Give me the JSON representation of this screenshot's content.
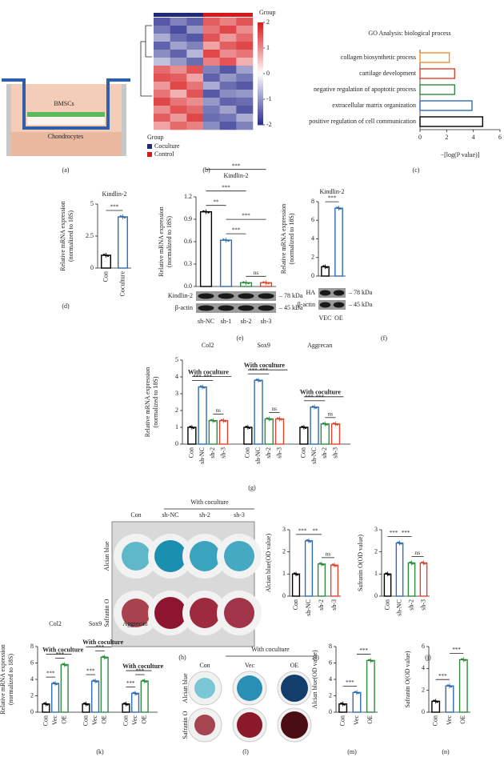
{
  "diagram": {
    "panel": "(a)",
    "labels": [
      "BMSCs",
      "Chondrocytes"
    ]
  },
  "images": [
    {
      "panel": "(h)",
      "title": "With coculture",
      "columns": [
        "Con",
        "sh-NC",
        "sh-2",
        "sh-3"
      ],
      "rows": [
        "Alcian blue",
        "Safranin O"
      ]
    },
    {
      "panel": "(l)",
      "title": "With coculture",
      "columns": [
        "Con",
        "Vec",
        "OE"
      ],
      "rows": [
        "Alcian blue",
        "Safranin O"
      ]
    }
  ],
  "chart_data": [
    {
      "type": "heatmap",
      "panel": "(b)",
      "annotation_label": "Group",
      "legend_title": "Group",
      "groups": [
        {
          "name": "Coculture",
          "color": "#1f2a7a",
          "columns": 3
        },
        {
          "name": "Control",
          "color": "#d7191c",
          "columns": 3
        }
      ],
      "zlim": [
        -2,
        2
      ],
      "zticks": [
        2,
        1,
        0,
        -1,
        -2
      ],
      "values": [
        [
          -1.6,
          -1.2,
          -1.5,
          1.4,
          1.1,
          1.5
        ],
        [
          -1.3,
          -1.7,
          -1.0,
          1.2,
          1.6,
          1.0
        ],
        [
          -0.8,
          -1.4,
          -1.6,
          1.5,
          0.9,
          1.3
        ],
        [
          -1.5,
          -0.9,
          -1.2,
          0.8,
          1.4,
          1.6
        ],
        [
          -1.1,
          -1.5,
          -0.7,
          1.6,
          1.0,
          1.2
        ],
        [
          -0.6,
          -1.0,
          -1.4,
          1.1,
          1.5,
          0.7
        ],
        [
          1.3,
          1.0,
          1.5,
          -1.2,
          -1.6,
          -0.9
        ],
        [
          1.5,
          1.4,
          0.8,
          -1.5,
          -1.0,
          -1.3
        ],
        [
          0.9,
          1.6,
          1.2,
          -0.8,
          -1.4,
          -1.6
        ],
        [
          1.2,
          0.7,
          1.5,
          -1.6,
          -1.1,
          -1.0
        ],
        [
          1.6,
          1.2,
          1.0,
          -1.0,
          -1.5,
          -1.4
        ],
        [
          1.0,
          1.5,
          1.3,
          -1.3,
          -0.9,
          -1.6
        ],
        [
          1.4,
          0.9,
          1.6,
          -1.4,
          -1.3,
          -0.8
        ],
        [
          0.8,
          1.3,
          1.1,
          -1.1,
          -1.6,
          -1.2
        ]
      ]
    },
    {
      "type": "hbar",
      "panel": "(c)",
      "title": "GO Analysis: biological process",
      "xlabel": "−[log(P value)]",
      "categories": [
        "collagen biosynthetic process",
        "cartilage development",
        "negative regulation of apoptotic process",
        "extracellular matrix organization",
        "positive regulation of cell communication"
      ],
      "values": [
        2.2,
        2.6,
        2.6,
        3.9,
        4.7
      ],
      "colors": [
        "#f28b2c",
        "#e0452b",
        "#2e8b3e",
        "#2f6db5",
        "#000000"
      ],
      "xlim": [
        0,
        6
      ],
      "xticks": [
        0,
        2,
        4,
        6
      ]
    },
    {
      "type": "bar",
      "panel": "(d)",
      "title": "Kindlin-2",
      "ylabel": [
        "Relative mRNA expression",
        "(normalized to 18S)"
      ],
      "categories": [
        "Con",
        "Coculture"
      ],
      "values": [
        1.0,
        4.0
      ],
      "colors": [
        "#000000",
        "#2f6db5"
      ],
      "ylim": [
        0,
        5
      ],
      "yticks": [
        0,
        2.5,
        5
      ],
      "annotations": [
        {
          "text": "***",
          "from": 0,
          "to": 1
        }
      ]
    },
    {
      "type": "bar",
      "panel": "(e)",
      "title": "Kindlin-2",
      "ylabel": [
        "Relative mRNA expression",
        "(normalized to 18S)"
      ],
      "categories": [
        "sh-NC",
        "sh-1",
        "sh-2",
        "sh-3"
      ],
      "values": [
        1.0,
        0.62,
        0.05,
        0.05
      ],
      "colors": [
        "#000000",
        "#2f6db5",
        "#2e8b3e",
        "#e0452b"
      ],
      "ylim": [
        0,
        1.2
      ],
      "yticks": [
        {
          "value": 0,
          "label": "0.0"
        },
        0.3,
        0.6,
        0.9,
        1.2
      ],
      "annotations": [
        {
          "text": "***",
          "from": 0,
          "to": 3
        },
        {
          "text": "***",
          "from": 0,
          "to": 2
        },
        {
          "text": "**",
          "from": 0,
          "to": 1
        },
        {
          "text": "***",
          "from": 1,
          "to": 3
        },
        {
          "text": "***",
          "from": 1,
          "to": 2
        },
        {
          "text": "ns",
          "from": 2,
          "to": 3
        }
      ],
      "blot": {
        "rows": [
          "Kindlin-2",
          "β-actin"
        ],
        "sizes": [
          "– 78 kDa",
          "– 45 kDa"
        ]
      }
    },
    {
      "type": "bar",
      "panel": "(f)",
      "title": "Kindlin-2",
      "ylabel": [
        "Relative mRNA expression",
        "(normalized to 18S)"
      ],
      "categories": [
        "VEC",
        "OE"
      ],
      "values": [
        1.0,
        7.3
      ],
      "colors": [
        "#000000",
        "#2f6db5"
      ],
      "ylim": [
        0,
        8
      ],
      "yticks": [
        0,
        2,
        4,
        6,
        8
      ],
      "annotations": [
        {
          "text": "***",
          "from": 0,
          "to": 1
        }
      ],
      "blot": {
        "rows": [
          "HA",
          "β-actin"
        ],
        "sizes": [
          "– 78 kDa",
          "– 45 kDa"
        ]
      }
    },
    {
      "type": "bar",
      "panel": "(g)",
      "ylabel": [
        "Relative mRNA expression",
        "(normalized to 18S)"
      ],
      "categories": [
        "Col2",
        "Sox9",
        "Aggrecan"
      ],
      "group_notes": [
        "With coculture",
        "With coculture",
        "With coculture"
      ],
      "series": [
        {
          "name": "Con",
          "color": "#000000",
          "values": [
            1.0,
            1.0,
            1.0
          ]
        },
        {
          "name": "sh-NC",
          "color": "#2f6db5",
          "values": [
            3.4,
            3.8,
            2.2
          ]
        },
        {
          "name": "sh-2",
          "color": "#2e8b3e",
          "values": [
            1.4,
            1.5,
            1.2
          ]
        },
        {
          "name": "sh-3",
          "color": "#e0452b",
          "values": [
            1.4,
            1.5,
            1.2
          ]
        }
      ],
      "ylim": [
        0,
        5
      ],
      "yticks": [
        0,
        1,
        2,
        3,
        4,
        5
      ],
      "annotations": [
        {
          "text": "***",
          "group": 0,
          "from": 0,
          "to": 1
        },
        {
          "text": "***",
          "group": 0,
          "from": 1,
          "to": 2
        },
        {
          "text": "ns",
          "group": 0,
          "from": 2,
          "to": 3
        },
        {
          "text": "***",
          "group": 1,
          "from": 0,
          "to": 1
        },
        {
          "text": "***",
          "group": 1,
          "from": 1,
          "to": 2
        },
        {
          "text": "ns",
          "group": 1,
          "from": 2,
          "to": 3
        },
        {
          "text": "***",
          "group": 2,
          "from": 0,
          "to": 1
        },
        {
          "text": "***",
          "group": 2,
          "from": 1,
          "to": 2
        },
        {
          "text": "ns",
          "group": 2,
          "from": 2,
          "to": 3
        }
      ]
    },
    {
      "type": "bar",
      "panel": "(i)",
      "ylabel": [
        "Alcian blue(OD value)"
      ],
      "categories": [
        "Con",
        "sh-NC",
        "sh-2",
        "sh-3"
      ],
      "values": [
        1.0,
        2.5,
        1.45,
        1.4
      ],
      "colors": [
        "#000000",
        "#2f6db5",
        "#2e8b3e",
        "#e0452b"
      ],
      "ylim": [
        0,
        3
      ],
      "yticks": [
        0,
        1,
        2,
        3
      ],
      "annotations": [
        {
          "text": "***",
          "from": 0,
          "to": 1
        },
        {
          "text": "**",
          "from": 1,
          "to": 2
        },
        {
          "text": "ns",
          "from": 2,
          "to": 3
        }
      ]
    },
    {
      "type": "bar",
      "panel": "(j)",
      "ylabel": [
        "Safranin O(OD value)"
      ],
      "categories": [
        "Con",
        "sh-NC",
        "sh-2",
        "sh-3"
      ],
      "values": [
        1.0,
        2.4,
        1.5,
        1.5
      ],
      "colors": [
        "#000000",
        "#2f6db5",
        "#2e8b3e",
        "#e0452b"
      ],
      "ylim": [
        0,
        3
      ],
      "yticks": [
        0,
        1,
        2,
        3
      ],
      "annotations": [
        {
          "text": "***",
          "from": 0,
          "to": 1
        },
        {
          "text": "***",
          "from": 1,
          "to": 2
        },
        {
          "text": "ns",
          "from": 2,
          "to": 3
        }
      ]
    },
    {
      "type": "bar",
      "panel": "(k)",
      "ylabel": [
        "Relative mRNA expression",
        "(normalized to 18S)"
      ],
      "categories": [
        "Col2",
        "Sox9",
        "Aggrecan"
      ],
      "group_notes": [
        "With coculture",
        "With coculture",
        "With coculture"
      ],
      "series": [
        {
          "name": "Con",
          "color": "#000000",
          "values": [
            1.0,
            1.0,
            1.0
          ]
        },
        {
          "name": "Vec",
          "color": "#2f6db5",
          "values": [
            3.5,
            3.8,
            2.3
          ]
        },
        {
          "name": "OE",
          "color": "#2e8b3e",
          "values": [
            5.8,
            6.7,
            3.8
          ]
        }
      ],
      "ylim": [
        0,
        8
      ],
      "yticks": [
        0,
        2,
        4,
        6,
        8
      ],
      "annotations": [
        {
          "text": "***",
          "group": 0,
          "from": 0,
          "to": 1
        },
        {
          "text": "***",
          "group": 0,
          "from": 1,
          "to": 2
        },
        {
          "text": "***",
          "group": 1,
          "from": 0,
          "to": 1
        },
        {
          "text": "***",
          "group": 1,
          "from": 1,
          "to": 2
        },
        {
          "text": "***",
          "group": 2,
          "from": 0,
          "to": 1
        },
        {
          "text": "***",
          "group": 2,
          "from": 1,
          "to": 2
        }
      ]
    },
    {
      "type": "bar",
      "panel": "(m)",
      "ylabel": [
        "Alcian blue(OD value)"
      ],
      "categories": [
        "Con",
        "Vec",
        "OE"
      ],
      "values": [
        1.0,
        2.4,
        6.3
      ],
      "colors": [
        "#000000",
        "#2f6db5",
        "#2e8b3e"
      ],
      "ylim": [
        0,
        8
      ],
      "yticks": [
        0,
        2,
        4,
        6,
        8
      ],
      "annotations": [
        {
          "text": "***",
          "from": 0,
          "to": 1
        },
        {
          "text": "***",
          "from": 1,
          "to": 2
        }
      ]
    },
    {
      "type": "bar",
      "panel": "(n)",
      "ylabel": [
        "Safranin O(OD value)"
      ],
      "categories": [
        "Con",
        "Vec",
        "OE"
      ],
      "values": [
        1.0,
        2.4,
        4.8
      ],
      "colors": [
        "#000000",
        "#2f6db5",
        "#2e8b3e"
      ],
      "ylim": [
        0,
        6
      ],
      "yticks": [
        0,
        2,
        4,
        6
      ],
      "annotations": [
        {
          "text": "***",
          "from": 0,
          "to": 1
        },
        {
          "text": "***",
          "from": 1,
          "to": 2
        }
      ]
    }
  ]
}
